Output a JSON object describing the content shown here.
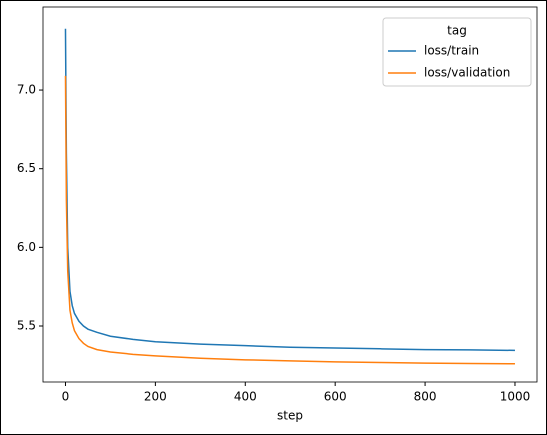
{
  "chart_data": {
    "type": "line",
    "x_label": "step",
    "x": [
      0,
      2,
      5,
      10,
      15,
      20,
      30,
      40,
      50,
      70,
      100,
      150,
      200,
      300,
      400,
      500,
      600,
      700,
      800,
      900,
      1000
    ],
    "series": [
      {
        "name": "loss/train",
        "color": "#1f77b4",
        "values": [
          7.39,
          6.6,
          6.0,
          5.72,
          5.63,
          5.58,
          5.53,
          5.5,
          5.48,
          5.46,
          5.435,
          5.415,
          5.4,
          5.385,
          5.375,
          5.365,
          5.36,
          5.355,
          5.35,
          5.348,
          5.345
        ]
      },
      {
        "name": "loss/validation",
        "color": "#ff7f0e",
        "values": [
          7.09,
          6.3,
          5.85,
          5.6,
          5.52,
          5.47,
          5.42,
          5.39,
          5.37,
          5.35,
          5.335,
          5.32,
          5.31,
          5.295,
          5.285,
          5.278,
          5.272,
          5.268,
          5.264,
          5.262,
          5.26
        ]
      }
    ],
    "xlim": [
      -50,
      1049
    ],
    "xticks": [
      0,
      200,
      400,
      600,
      800,
      1000
    ],
    "ylim": [
      5.144,
      7.528
    ],
    "yticks": [
      5.5,
      {
        "value": 6.0,
        "label": "6.0"
      },
      6.5,
      {
        "value": 7.0,
        "label": "7.0"
      }
    ],
    "grid": false,
    "legend": "upper right",
    "legend_title": "tag"
  }
}
